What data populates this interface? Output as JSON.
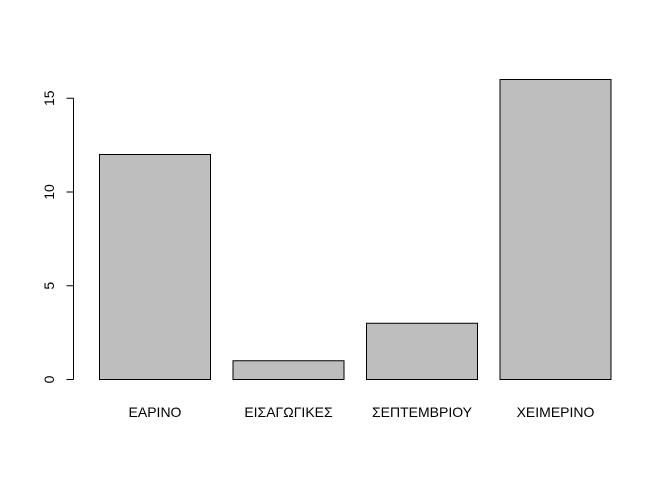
{
  "chart_data": {
    "type": "bar",
    "title": "",
    "xlabel": "",
    "ylabel": "",
    "categories": [
      "ΕΑΡΙΝΟ",
      "ΕΙΣΑΓΩΓΙΚΕΣ",
      "ΣΕΠΤΕΜΒΡΙΟΥ",
      "ΧΕΙΜΕΡΙΝΟ"
    ],
    "values": [
      12,
      1,
      3,
      16
    ],
    "yticks": [
      0,
      5,
      10,
      15
    ],
    "ylim": [
      0,
      16
    ],
    "grid": false,
    "legend": "none",
    "colors": {
      "bar_fill": "#bebebe",
      "bar_stroke": "#000000",
      "axis": "#000000"
    }
  }
}
